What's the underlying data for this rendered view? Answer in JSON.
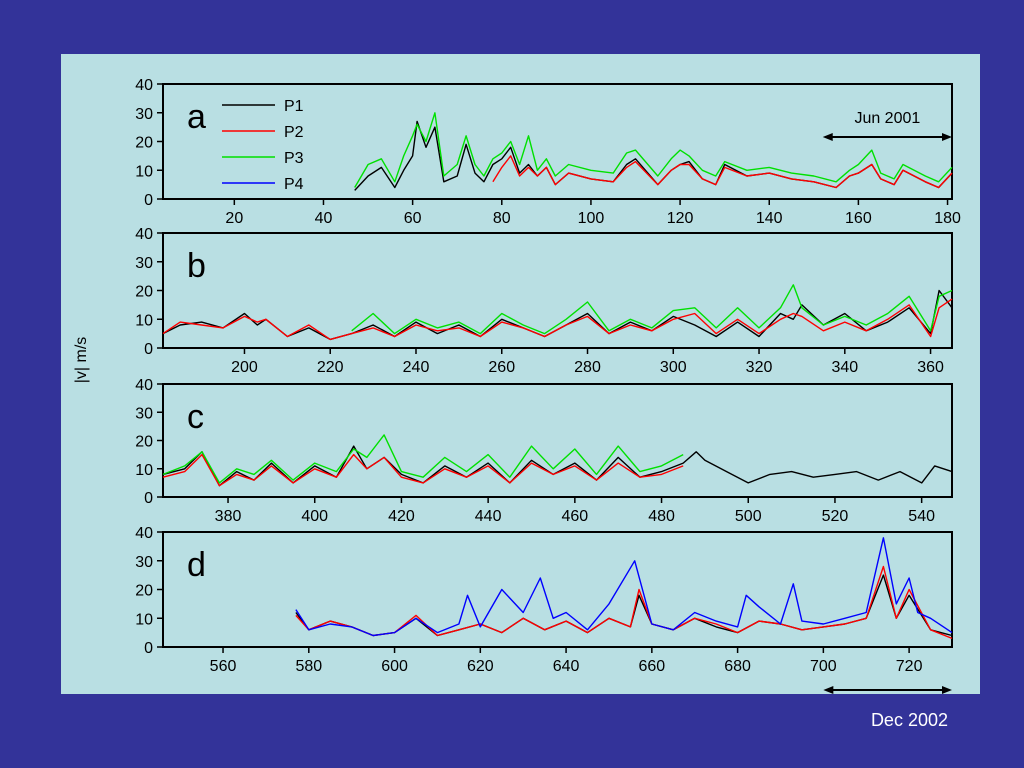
{
  "ylabel": "|v| m/s",
  "dec_label": "Dec 2002",
  "jun_label": "Jun 2001",
  "colors": {
    "background": "#333399",
    "panel": "#b9dfe3",
    "P1": "#000000",
    "P2": "#ff0000",
    "P3": "#00e000",
    "P4": "#0000ff"
  },
  "legend": [
    "P1",
    "P2",
    "P3",
    "P4"
  ],
  "chart_data": [
    {
      "type": "line",
      "label": "a",
      "xlim": [
        4,
        181
      ],
      "ylim": [
        0,
        40
      ],
      "xticks": [
        20,
        40,
        60,
        80,
        100,
        120,
        140,
        160,
        180
      ],
      "yticks": [
        0,
        10,
        20,
        30,
        40
      ],
      "annotation": {
        "text": "Jun 2001",
        "x_range": [
          152,
          181
        ]
      },
      "series": [
        {
          "name": "P1",
          "x": [
            47,
            50,
            53,
            56,
            58,
            60,
            61,
            63,
            65,
            67,
            70,
            72,
            74,
            76,
            78,
            80,
            82,
            84,
            86,
            88,
            90,
            92,
            95,
            100,
            105,
            108,
            110,
            115,
            118,
            120,
            122,
            125,
            128,
            130,
            135,
            140,
            145,
            150,
            155,
            158,
            160,
            163,
            165,
            168,
            170,
            175,
            178,
            181
          ],
          "values": [
            3,
            8,
            11,
            4,
            10,
            15,
            27,
            18,
            25,
            6,
            8,
            19,
            9,
            6,
            12,
            14,
            18,
            9,
            12,
            8,
            11,
            5,
            9,
            7,
            6,
            12,
            14,
            5,
            10,
            12,
            13,
            7,
            5,
            12,
            8,
            9,
            7,
            6,
            4,
            8,
            9,
            12,
            7,
            5,
            10,
            6,
            4,
            9
          ]
        },
        {
          "name": "P2",
          "x": [
            78,
            80,
            82,
            84,
            86,
            88,
            90,
            92,
            95,
            100,
            105,
            108,
            110,
            115,
            118,
            120,
            122,
            125,
            128,
            130,
            135,
            140,
            145,
            150,
            155,
            158,
            160,
            163,
            165,
            168,
            170,
            175,
            178,
            181
          ],
          "values": [
            6,
            11,
            15,
            8,
            11,
            8,
            11,
            5,
            9,
            7,
            6,
            11,
            13,
            5,
            10,
            12,
            12,
            7,
            5,
            11,
            8,
            9,
            7,
            6,
            4,
            8,
            9,
            12,
            7,
            5,
            10,
            6,
            4,
            9
          ]
        },
        {
          "name": "P3",
          "x": [
            47,
            50,
            53,
            56,
            58,
            60,
            61,
            63,
            65,
            67,
            70,
            72,
            74,
            76,
            78,
            80,
            82,
            84,
            86,
            88,
            90,
            92,
            95,
            100,
            105,
            108,
            110,
            115,
            118,
            120,
            122,
            125,
            128,
            130,
            135,
            140,
            145,
            150,
            155,
            158,
            160,
            163,
            165,
            168,
            170,
            175,
            178,
            181
          ],
          "values": [
            4,
            12,
            14,
            6,
            15,
            22,
            26,
            20,
            30,
            8,
            12,
            22,
            12,
            8,
            14,
            16,
            20,
            12,
            22,
            10,
            14,
            8,
            12,
            10,
            9,
            16,
            17,
            8,
            14,
            17,
            15,
            10,
            8,
            13,
            10,
            11,
            9,
            8,
            6,
            10,
            12,
            17,
            9,
            7,
            12,
            8,
            6,
            11
          ]
        }
      ]
    },
    {
      "type": "line",
      "label": "b",
      "xlim": [
        181,
        365
      ],
      "ylim": [
        0,
        40
      ],
      "xticks": [
        200,
        220,
        240,
        260,
        280,
        300,
        320,
        340,
        360
      ],
      "yticks": [
        0,
        10,
        20,
        30,
        40
      ],
      "series": [
        {
          "name": "P1",
          "x": [
            181,
            185,
            190,
            195,
            200,
            203,
            205,
            210,
            215,
            220,
            225,
            230,
            235,
            240,
            245,
            250,
            255,
            260,
            265,
            270,
            275,
            280,
            285,
            290,
            295,
            300,
            305,
            310,
            315,
            320,
            325,
            328,
            330,
            335,
            340,
            345,
            350,
            355,
            360,
            362,
            365
          ],
          "values": [
            5,
            8,
            9,
            7,
            12,
            8,
            10,
            4,
            7,
            3,
            5,
            8,
            4,
            9,
            5,
            8,
            4,
            10,
            7,
            4,
            8,
            12,
            5,
            9,
            6,
            11,
            8,
            4,
            9,
            4,
            12,
            10,
            15,
            8,
            12,
            6,
            9,
            14,
            5,
            20,
            14
          ]
        },
        {
          "name": "P2",
          "x": [
            181,
            185,
            190,
            195,
            200,
            203,
            205,
            210,
            215,
            220,
            225,
            230,
            235,
            240,
            245,
            250,
            255,
            260,
            265,
            270,
            275,
            280,
            285,
            290,
            295,
            300,
            305,
            310,
            315,
            320,
            325,
            328,
            330,
            335,
            340,
            345,
            350,
            355,
            360,
            362,
            365
          ],
          "values": [
            5,
            9,
            8,
            7,
            11,
            9,
            10,
            4,
            8,
            3,
            5,
            7,
            4,
            8,
            6,
            7,
            4,
            9,
            7,
            4,
            8,
            11,
            5,
            8,
            6,
            10,
            12,
            5,
            10,
            5,
            10,
            12,
            11,
            6,
            9,
            6,
            10,
            15,
            4,
            14,
            17
          ]
        },
        {
          "name": "P3",
          "x": [
            225,
            230,
            235,
            240,
            245,
            250,
            255,
            260,
            265,
            270,
            275,
            280,
            285,
            290,
            295,
            300,
            305,
            310,
            315,
            320,
            325,
            328,
            330,
            335,
            340,
            345,
            350,
            355,
            360,
            362,
            365
          ],
          "values": [
            6,
            12,
            5,
            10,
            7,
            9,
            5,
            12,
            8,
            5,
            10,
            16,
            6,
            10,
            7,
            13,
            14,
            7,
            14,
            7,
            14,
            22,
            14,
            8,
            11,
            8,
            12,
            18,
            6,
            18,
            20
          ]
        }
      ]
    },
    {
      "type": "line",
      "label": "c",
      "xlim": [
        365,
        547
      ],
      "ylim": [
        0,
        40
      ],
      "xticks": [
        380,
        400,
        420,
        440,
        460,
        480,
        500,
        520,
        540
      ],
      "yticks": [
        0,
        10,
        20,
        30,
        40
      ],
      "series": [
        {
          "name": "P1",
          "x": [
            365,
            370,
            374,
            378,
            382,
            386,
            390,
            395,
            400,
            405,
            409,
            412,
            416,
            420,
            425,
            430,
            435,
            440,
            445,
            450,
            455,
            460,
            465,
            470,
            475,
            480,
            485,
            488,
            490,
            495,
            500,
            505,
            510,
            515,
            520,
            525,
            530,
            535,
            540,
            543,
            547
          ],
          "values": [
            8,
            10,
            16,
            4,
            9,
            6,
            12,
            5,
            11,
            7,
            18,
            10,
            14,
            8,
            5,
            11,
            7,
            12,
            5,
            13,
            8,
            12,
            6,
            14,
            7,
            9,
            12,
            16,
            13,
            9,
            5,
            8,
            9,
            7,
            8,
            9,
            6,
            9,
            5,
            11,
            9
          ]
        },
        {
          "name": "P2",
          "x": [
            365,
            370,
            374,
            378,
            382,
            386,
            390,
            395,
            400,
            405,
            409,
            412,
            416,
            420,
            425,
            430,
            435,
            440,
            445,
            450,
            455,
            460,
            465,
            470,
            475,
            480,
            485
          ],
          "values": [
            7,
            9,
            15,
            4,
            8,
            6,
            11,
            5,
            10,
            7,
            15,
            10,
            14,
            7,
            5,
            10,
            7,
            11,
            5,
            12,
            8,
            11,
            6,
            12,
            7,
            8,
            11
          ]
        },
        {
          "name": "P3",
          "x": [
            365,
            370,
            374,
            378,
            382,
            386,
            390,
            395,
            400,
            405,
            409,
            412,
            416,
            420,
            425,
            430,
            435,
            440,
            445,
            450,
            455,
            460,
            465,
            470,
            475,
            480,
            485
          ],
          "values": [
            8,
            11,
            16,
            5,
            10,
            8,
            13,
            6,
            12,
            9,
            17,
            14,
            22,
            9,
            7,
            14,
            9,
            15,
            7,
            18,
            10,
            17,
            8,
            18,
            9,
            11,
            15
          ]
        }
      ]
    },
    {
      "type": "line",
      "label": "d",
      "xlim": [
        546,
        730
      ],
      "ylim": [
        0,
        40
      ],
      "xticks": [
        560,
        580,
        600,
        620,
        640,
        660,
        680,
        700,
        720
      ],
      "yticks": [
        0,
        10,
        20,
        30,
        40
      ],
      "annotation": {
        "text": "Dec 2002",
        "x_range": [
          700,
          730
        ]
      },
      "series": [
        {
          "name": "P1",
          "x": [
            577,
            580,
            585,
            590,
            595,
            600,
            605,
            610,
            615,
            620,
            625,
            630,
            635,
            640,
            645,
            650,
            655,
            657,
            660,
            665,
            670,
            675,
            680,
            685,
            690,
            695,
            700,
            705,
            710,
            714,
            717,
            720,
            725,
            730
          ],
          "values": [
            12,
            6,
            9,
            7,
            4,
            5,
            10,
            4,
            6,
            8,
            5,
            10,
            6,
            9,
            5,
            10,
            7,
            18,
            8,
            6,
            10,
            7,
            5,
            9,
            8,
            6,
            7,
            8,
            10,
            25,
            10,
            18,
            6,
            4
          ]
        },
        {
          "name": "P2",
          "x": [
            577,
            580,
            585,
            590,
            595,
            600,
            605,
            610,
            615,
            620,
            625,
            630,
            635,
            640,
            645,
            650,
            655,
            657,
            660,
            665,
            670,
            675,
            680,
            685,
            690,
            695,
            700,
            705,
            710,
            714,
            717,
            720,
            725,
            730
          ],
          "values": [
            11,
            6,
            9,
            7,
            4,
            5,
            11,
            4,
            6,
            8,
            5,
            10,
            6,
            9,
            5,
            10,
            7,
            20,
            8,
            6,
            10,
            8,
            5,
            9,
            8,
            6,
            7,
            8,
            10,
            28,
            10,
            20,
            6,
            3
          ]
        },
        {
          "name": "P4",
          "x": [
            577,
            580,
            585,
            590,
            595,
            600,
            605,
            610,
            615,
            617,
            620,
            625,
            630,
            634,
            637,
            640,
            645,
            650,
            656,
            660,
            665,
            670,
            675,
            680,
            682,
            685,
            690,
            693,
            695,
            700,
            705,
            710,
            714,
            717,
            720,
            722,
            725,
            730
          ],
          "values": [
            13,
            6,
            8,
            7,
            4,
            5,
            10,
            5,
            8,
            18,
            7,
            20,
            12,
            24,
            10,
            12,
            6,
            15,
            30,
            8,
            6,
            12,
            9,
            7,
            18,
            14,
            8,
            22,
            9,
            8,
            10,
            12,
            38,
            15,
            24,
            12,
            10,
            5
          ]
        }
      ]
    }
  ]
}
